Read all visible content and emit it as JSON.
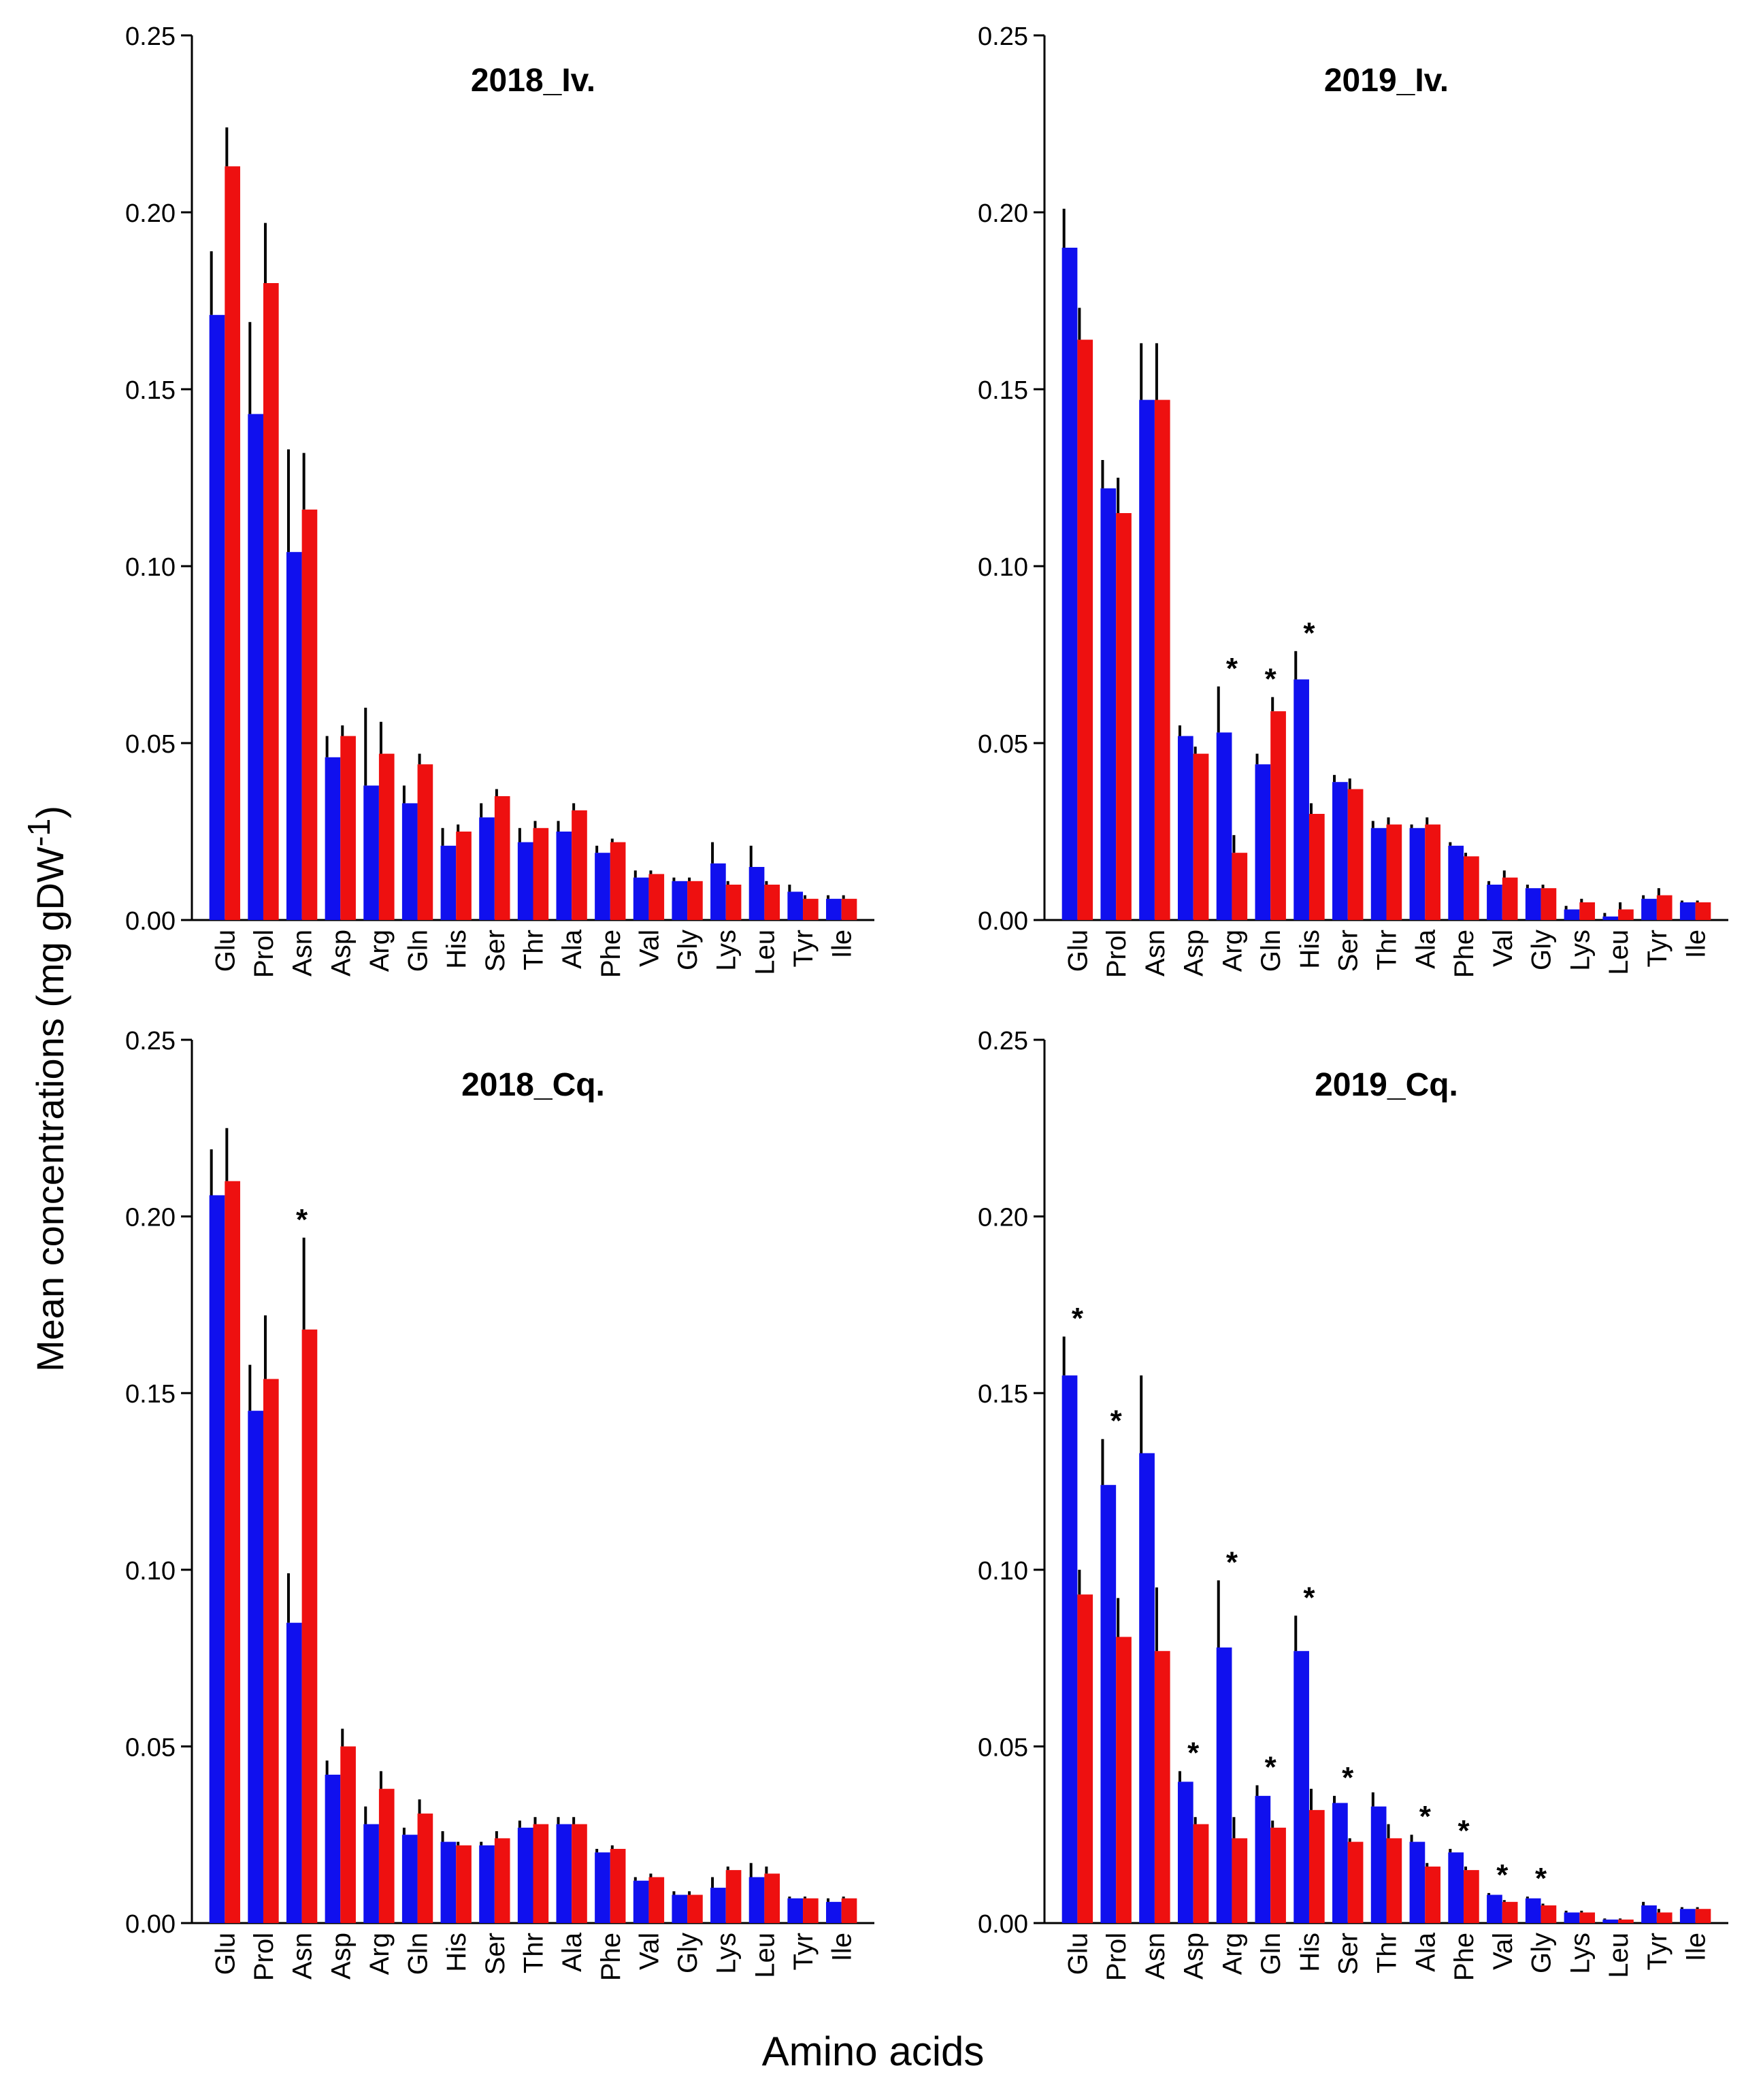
{
  "figure": {
    "ylabel": "Mean concentrations (mg gDW",
    "ylabel_sup": "-1",
    "ylabel_end": ")",
    "xlabel": "Amino acids"
  },
  "colors": {
    "series_a": "#1010ee",
    "series_b": "#ee1010",
    "error": "#000000"
  },
  "chart_data": [
    {
      "type": "bar",
      "title": "2018_Iv.",
      "categories": [
        "Glu",
        "Prol",
        "Asn",
        "Asp",
        "Arg",
        "Gln",
        "His",
        "Ser",
        "Thr",
        "Ala",
        "Phe",
        "Val",
        "Gly",
        "Lys",
        "Leu",
        "Tyr",
        "Ile"
      ],
      "ylim": [
        0,
        0.25
      ],
      "yticks": [
        "0.00",
        "0.05",
        "0.10",
        "0.15",
        "0.20",
        "0.25"
      ],
      "series": [
        {
          "name": "blue",
          "values": [
            0.171,
            0.143,
            0.104,
            0.046,
            0.038,
            0.033,
            0.021,
            0.029,
            0.022,
            0.025,
            0.019,
            0.012,
            0.011,
            0.016,
            0.015,
            0.008,
            0.006
          ],
          "errors": [
            0.018,
            0.026,
            0.029,
            0.006,
            0.022,
            0.005,
            0.005,
            0.004,
            0.004,
            0.003,
            0.002,
            0.002,
            0.001,
            0.006,
            0.006,
            0.002,
            0.001
          ]
        },
        {
          "name": "red",
          "values": [
            0.213,
            0.18,
            0.116,
            0.052,
            0.047,
            0.044,
            0.025,
            0.035,
            0.026,
            0.031,
            0.022,
            0.013,
            0.011,
            0.01,
            0.01,
            0.006,
            0.006
          ],
          "errors": [
            0.011,
            0.017,
            0.016,
            0.003,
            0.009,
            0.003,
            0.002,
            0.002,
            0.002,
            0.002,
            0.001,
            0.001,
            0.001,
            0.001,
            0.001,
            0.001,
            0.001
          ]
        }
      ],
      "significance": []
    },
    {
      "type": "bar",
      "title": "2019_Iv.",
      "categories": [
        "Glu",
        "Prol",
        "Asn",
        "Asp",
        "Arg",
        "Gln",
        "His",
        "Ser",
        "Thr",
        "Ala",
        "Phe",
        "Val",
        "Gly",
        "Lys",
        "Leu",
        "Tyr",
        "Ile"
      ],
      "ylim": [
        0,
        0.25
      ],
      "yticks": [
        "0.00",
        "0.05",
        "0.10",
        "0.15",
        "0.20",
        "0.25"
      ],
      "series": [
        {
          "name": "blue",
          "values": [
            0.19,
            0.122,
            0.147,
            0.052,
            0.053,
            0.044,
            0.068,
            0.039,
            0.026,
            0.026,
            0.021,
            0.01,
            0.009,
            0.003,
            0.001,
            0.006,
            0.005
          ],
          "errors": [
            0.011,
            0.008,
            0.016,
            0.003,
            0.013,
            0.003,
            0.008,
            0.002,
            0.002,
            0.001,
            0.001,
            0.001,
            0.001,
            0.001,
            0.001,
            0.001,
            0.0005
          ]
        },
        {
          "name": "red",
          "values": [
            0.164,
            0.115,
            0.147,
            0.047,
            0.019,
            0.059,
            0.03,
            0.037,
            0.027,
            0.027,
            0.018,
            0.012,
            0.009,
            0.005,
            0.003,
            0.007,
            0.005
          ],
          "errors": [
            0.009,
            0.01,
            0.016,
            0.002,
            0.005,
            0.004,
            0.003,
            0.003,
            0.002,
            0.002,
            0.001,
            0.002,
            0.001,
            0.001,
            0.002,
            0.002,
            0.0005
          ]
        }
      ],
      "significance": [
        "Arg",
        "Gln",
        "His"
      ],
      "significance_mark": "*"
    },
    {
      "type": "bar",
      "title": "2018_Cq.",
      "categories": [
        "Glu",
        "Prol",
        "Asn",
        "Asp",
        "Arg",
        "Gln",
        "His",
        "Ser",
        "Thr",
        "Ala",
        "Phe",
        "Val",
        "Gly",
        "Lys",
        "Leu",
        "Tyr",
        "Ile"
      ],
      "ylim": [
        0,
        0.25
      ],
      "yticks": [
        "0.00",
        "0.05",
        "0.10",
        "0.15",
        "0.20",
        "0.25"
      ],
      "series": [
        {
          "name": "blue",
          "values": [
            0.206,
            0.145,
            0.085,
            0.042,
            0.028,
            0.025,
            0.023,
            0.022,
            0.027,
            0.028,
            0.02,
            0.012,
            0.008,
            0.01,
            0.013,
            0.007,
            0.006
          ],
          "errors": [
            0.013,
            0.013,
            0.014,
            0.004,
            0.005,
            0.002,
            0.003,
            0.001,
            0.002,
            0.002,
            0.001,
            0.001,
            0.001,
            0.003,
            0.004,
            0.0005,
            0.001
          ]
        },
        {
          "name": "red",
          "values": [
            0.21,
            0.154,
            0.168,
            0.05,
            0.038,
            0.031,
            0.022,
            0.024,
            0.028,
            0.028,
            0.021,
            0.013,
            0.008,
            0.015,
            0.014,
            0.007,
            0.007
          ],
          "errors": [
            0.015,
            0.018,
            0.026,
            0.005,
            0.005,
            0.004,
            0.001,
            0.002,
            0.002,
            0.002,
            0.001,
            0.001,
            0.001,
            0.001,
            0.002,
            0.0005,
            0.0005
          ]
        }
      ],
      "significance": [
        "Asn"
      ],
      "significance_mark": "*"
    },
    {
      "type": "bar",
      "title": "2019_Cq.",
      "categories": [
        "Glu",
        "Prol",
        "Asn",
        "Asp",
        "Arg",
        "Gln",
        "His",
        "Ser",
        "Thr",
        "Ala",
        "Phe",
        "Val",
        "Gly",
        "Lys",
        "Leu",
        "Tyr",
        "Ile"
      ],
      "ylim": [
        0,
        0.25
      ],
      "yticks": [
        "0.00",
        "0.05",
        "0.10",
        "0.15",
        "0.20",
        "0.25"
      ],
      "series": [
        {
          "name": "blue",
          "values": [
            0.155,
            0.124,
            0.133,
            0.04,
            0.078,
            0.036,
            0.077,
            0.034,
            0.033,
            0.023,
            0.02,
            0.008,
            0.007,
            0.003,
            0.001,
            0.005,
            0.004
          ],
          "errors": [
            0.011,
            0.013,
            0.022,
            0.003,
            0.019,
            0.003,
            0.01,
            0.002,
            0.004,
            0.002,
            0.001,
            0.0005,
            0.0005,
            0.0005,
            0.0003,
            0.001,
            0.0005
          ]
        },
        {
          "name": "red",
          "values": [
            0.093,
            0.081,
            0.077,
            0.028,
            0.024,
            0.027,
            0.032,
            0.023,
            0.024,
            0.016,
            0.015,
            0.006,
            0.005,
            0.003,
            0.001,
            0.003,
            0.004
          ],
          "errors": [
            0.007,
            0.011,
            0.018,
            0.002,
            0.006,
            0.002,
            0.006,
            0.001,
            0.004,
            0.001,
            0.001,
            0.0005,
            0.0005,
            0.0005,
            0.0003,
            0.001,
            0.0005
          ]
        }
      ],
      "significance": [
        "Glu",
        "Prol",
        "Asp",
        "Arg",
        "Gln",
        "His",
        "Ser",
        "Ala",
        "Phe",
        "Val",
        "Gly"
      ],
      "significance_mark": "*"
    }
  ]
}
